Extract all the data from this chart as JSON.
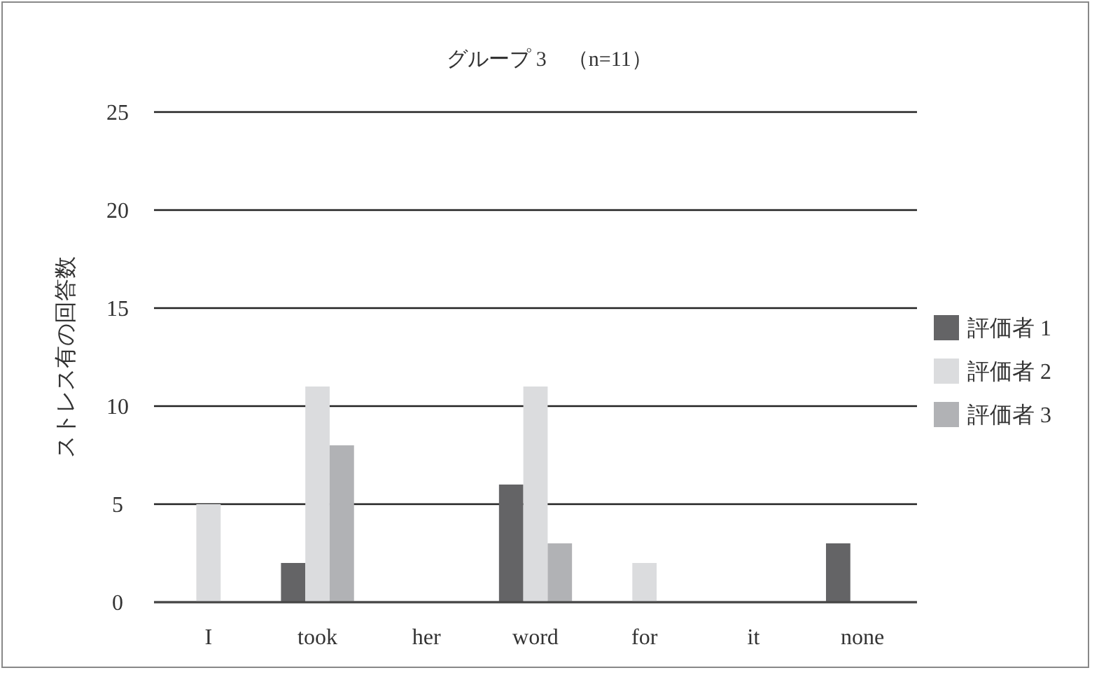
{
  "chart_data": {
    "type": "bar",
    "title": "グループ 3　（n=11）",
    "ylabel": "ストレス有の回答数",
    "categories": [
      "I",
      "took",
      "her",
      "word",
      "for",
      "it",
      "none"
    ],
    "series": [
      {
        "name": "評価者 1",
        "color": "#646466",
        "values": [
          0,
          2,
          0,
          6,
          0,
          0,
          3
        ]
      },
      {
        "name": "評価者 2",
        "color": "#dbdcde",
        "values": [
          5,
          11,
          0,
          11,
          2,
          0,
          0
        ]
      },
      {
        "name": "評価者 3",
        "color": "#b1b2b5",
        "values": [
          0,
          8,
          0,
          3,
          0,
          0,
          0
        ]
      }
    ],
    "ylim": [
      0,
      25
    ],
    "yticks": [
      0,
      5,
      10,
      15,
      20,
      25
    ],
    "grid": "y",
    "legend": "right"
  }
}
